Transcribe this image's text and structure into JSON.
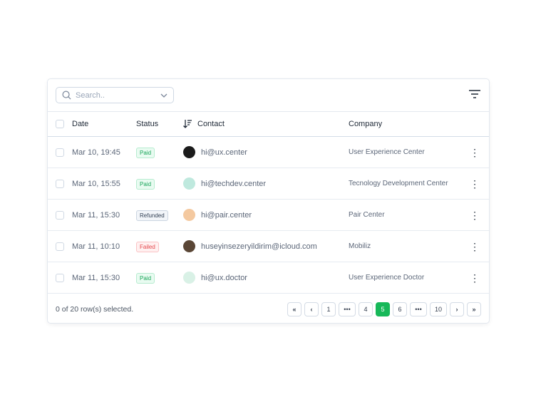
{
  "search": {
    "placeholder": "Search.."
  },
  "columns": {
    "date": "Date",
    "status": "Status",
    "contact": "Contact",
    "company": "Company"
  },
  "rows": [
    {
      "date": "Mar 10, 19:45",
      "status": "Paid",
      "contact": "hi@ux.center",
      "company": "User Experience Center",
      "avatar": "#1b1b1b"
    },
    {
      "date": "Mar 10, 15:55",
      "status": "Paid",
      "contact": "hi@techdev.center",
      "company": "Tecnology Development Center",
      "avatar": "#bfe9de"
    },
    {
      "date": "Mar 11, 15:30",
      "status": "Refunded",
      "contact": "hi@pair.center",
      "company": "Pair Center",
      "avatar": "#f4c9a0"
    },
    {
      "date": "Mar 11, 10:10",
      "status": "Failed",
      "contact": "huseyinsezeryildirim@icloud.com",
      "company": "Mobiliz",
      "avatar": "#5a4636"
    },
    {
      "date": "Mar 11, 15:30",
      "status": "Paid",
      "contact": "hi@ux.doctor",
      "company": "User Experience Doctor",
      "avatar": "#d9f1e6"
    }
  ],
  "footer": {
    "selected": "0 of 20 row(s) selected."
  },
  "pagination": {
    "first": "«",
    "prev": "‹",
    "pages": [
      "1",
      "•••",
      "4",
      "5",
      "6",
      "•••",
      "10"
    ],
    "current": "5",
    "next": "›",
    "last": "»"
  },
  "colors": {
    "accent": "#17b859"
  }
}
